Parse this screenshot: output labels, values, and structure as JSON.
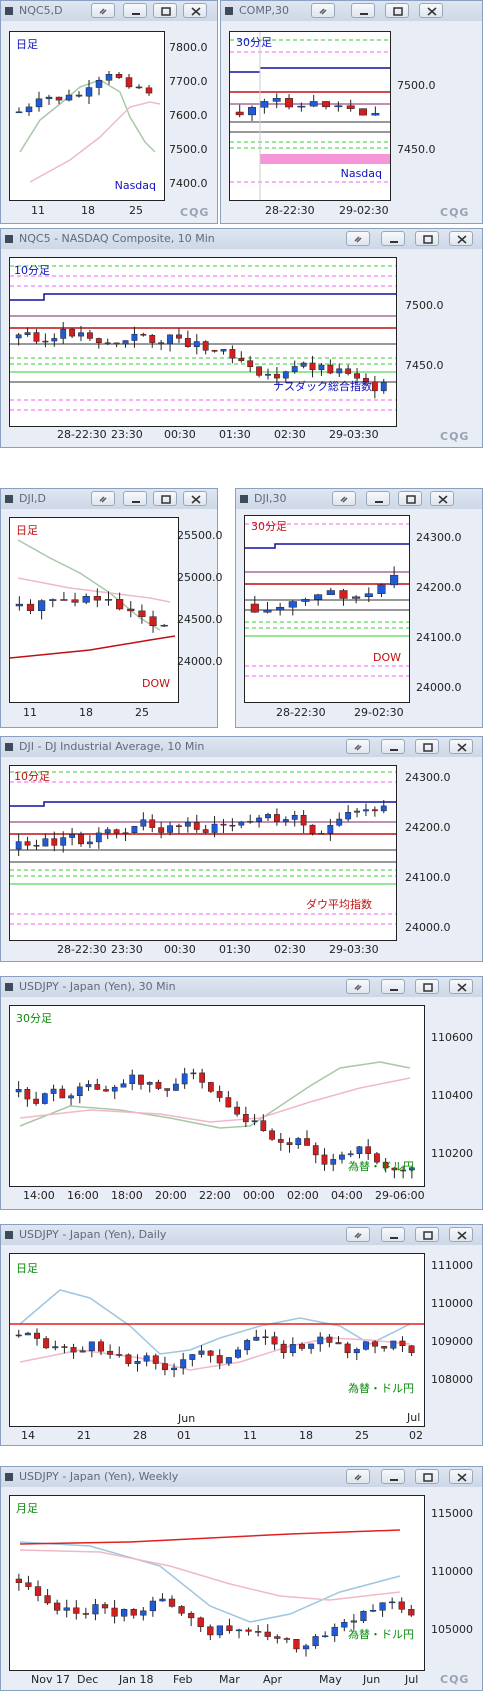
{
  "colors": {
    "up": "#1f5bd8",
    "down": "#d11e1e",
    "ma_fast": "#a8c8a8",
    "ma_slow": "#f0b8c8",
    "blue_line": "#1010a0",
    "red_line": "#c01010"
  },
  "panels": [
    {
      "id": "nqc5-daily",
      "title": "NQC5,D",
      "label_tl": "日足",
      "label_br": "Nasdaq",
      "yticks": [
        "7800.0",
        "7700.0",
        "7600.0",
        "7500.0",
        "7400.0"
      ],
      "xticks": [
        "11",
        "18",
        "25"
      ]
    },
    {
      "id": "comp-30",
      "title": "COMP,30",
      "label_tl": "30分足",
      "label_br": "Nasdaq",
      "yticks": [
        "7500.0",
        "7450.0"
      ],
      "xticks": [
        "28-22:30",
        "29-02:30"
      ]
    },
    {
      "id": "nqc5-10",
      "title": "NQC5 - NASDAQ Composite, 10 Min",
      "label_tl": "10分足",
      "label_br": "ナスダック総合指数",
      "yticks": [
        "7500.0",
        "7450.0"
      ],
      "xticks": [
        "28-22:30",
        "23:30",
        "00:30",
        "01:30",
        "02:30",
        "29-03:30"
      ]
    },
    {
      "id": "dji-daily",
      "title": "DJI,D",
      "label_tl": "日足",
      "label_br": "DOW",
      "yticks": [
        "25500.0",
        "25000.0",
        "24500.0",
        "24000.0"
      ],
      "xticks": [
        "11",
        "18",
        "25"
      ]
    },
    {
      "id": "dji-30",
      "title": "DJI,30",
      "label_tl": "30分足",
      "label_br": "DOW",
      "yticks": [
        "24300.0",
        "24200.0",
        "24100.0",
        "24000.0"
      ],
      "xticks": [
        "28-22:30",
        "29-02:30"
      ]
    },
    {
      "id": "dji-10",
      "title": "DJI - DJ Industrial Average, 10 Min",
      "label_tl": "10分足",
      "label_br": "ダウ平均指数",
      "yticks": [
        "24300.0",
        "24200.0",
        "24100.0",
        "24000.0"
      ],
      "xticks": [
        "28-22:30",
        "23:30",
        "00:30",
        "01:30",
        "02:30",
        "29-03:30"
      ]
    },
    {
      "id": "usdjpy-30",
      "title": "USDJPY - Japan (Yen), 30 Min",
      "label_tl": "30分足",
      "label_br": "為替・ドル円",
      "yticks": [
        "110600",
        "110400",
        "110200"
      ],
      "xticks": [
        "14:00",
        "16:00",
        "18:00",
        "20:00",
        "22:00",
        "00:00",
        "02:00",
        "04:00",
        "29-06:00"
      ]
    },
    {
      "id": "usdjpy-daily",
      "title": "USDJPY - Japan (Yen), Daily",
      "label_tl": "日足",
      "label_br": "為替・ドル円",
      "yticks": [
        "111000",
        "110000",
        "109000",
        "108000"
      ],
      "xticks": [
        "14",
        "21",
        "28",
        "01",
        "11",
        "18",
        "25",
        "02"
      ],
      "xticks_top": [
        "Jun",
        "Jul"
      ]
    },
    {
      "id": "usdjpy-weekly",
      "title": "USDJPY - Japan (Yen), Weekly",
      "label_tl": "月足",
      "label_br": "為替・ドル円",
      "yticks": [
        "115000",
        "110000",
        "105000"
      ],
      "xticks": [
        "Nov 17",
        "Dec",
        "Jan 18",
        "Feb",
        "Mar",
        "Apr",
        "May",
        "Jun",
        "Jul"
      ]
    }
  ],
  "brand": "CQG"
}
